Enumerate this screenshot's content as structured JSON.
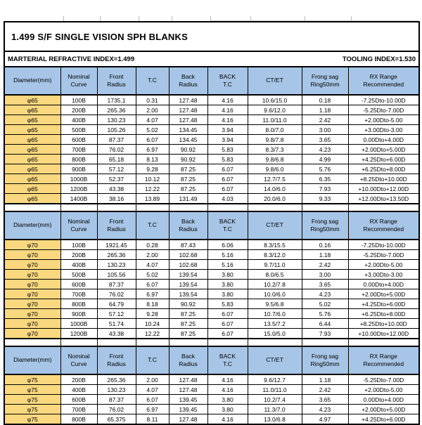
{
  "page": {
    "title": "1.499 S/F SINGLE VISION SPH BLANKS",
    "material_index_label": "MARTERIAL REFRACTIVE INDEX=1.499",
    "tooling_index_label": "TOOLING INDEX=1.530"
  },
  "colors": {
    "header_bg": "#A7C5E6",
    "diameter_bg": "#FAD87F",
    "border": "#000000"
  },
  "columns": [
    [
      "Diameter(mm)"
    ],
    [
      "Nominal",
      "Curve"
    ],
    [
      "Front",
      "Radius"
    ],
    [
      "T.C"
    ],
    [
      "Back",
      "Radius"
    ],
    [
      "BACK",
      "T.C"
    ],
    [
      "CT/ET"
    ],
    [
      "Frong sag",
      "Ring50mm"
    ],
    [
      "RX Range",
      "Recommended"
    ]
  ],
  "tables": [
    {
      "diameter": "φ65",
      "rows": [
        [
          "φ65",
          "100B",
          "1735.1",
          "0.31",
          "127.48",
          "4.16",
          "10.6/15.0",
          "0.18",
          "-7.25Dto-10.00D"
        ],
        [
          "φ65",
          "200B",
          "265.36",
          "2.00",
          "127.48",
          "4.16",
          "9.6/12.0",
          "1.18",
          "-5.25Dto-7.00D"
        ],
        [
          "φ65",
          "400B",
          "130.23",
          "4.07",
          "127.48",
          "4.16",
          "11.0/11.0",
          "2.42",
          "+2.00Dto-5.00"
        ],
        [
          "φ65",
          "500B",
          "105.26",
          "5.02",
          "134.45",
          "3.94",
          "8.0/7.0",
          "3.00",
          "+3.00Dto-3.00"
        ],
        [
          "φ65",
          "600B",
          "87.37",
          "6.07",
          "134.45",
          "3.94",
          "9.8/7.8",
          "3.65",
          "0.00Dto+4.00D"
        ],
        [
          "φ65",
          "700B",
          "76.02",
          "6.97",
          "90.92",
          "5.83",
          "8.3/7.3",
          "4.23",
          "+2.00Dto+5.00D"
        ],
        [
          "φ65",
          "800B",
          "65.18",
          "8.13",
          "90.92",
          "5.83",
          "9.8/6.8",
          "4.99",
          "+4.25Dto+6.00D"
        ],
        [
          "φ65",
          "900B",
          "57.12",
          "9.28",
          "87.25",
          "6.07",
          "9.8/6.0",
          "5.76",
          "+6.25Dto+8.00D"
        ],
        [
          "φ65",
          "1000B",
          "52.37",
          "10.12",
          "87.25",
          "6.07",
          "12.7/7.5",
          "6.35",
          "+8.25Dto+10.00D"
        ],
        [
          "φ65",
          "1200B",
          "43.38",
          "12.22",
          "87.25",
          "6.07",
          "14.0/6.0",
          "7.93",
          "+10.00Dto+12.00D"
        ],
        [
          "φ65",
          "1400B",
          "38.16",
          "13.89",
          "131.49",
          "4.03",
          "20.0/6.0",
          "9.33",
          "+12.00Dto+13.50D"
        ]
      ]
    },
    {
      "diameter": "φ70",
      "rows": [
        [
          "φ70",
          "100B",
          "1921.45",
          "0.28",
          "87.43",
          "6.06",
          "8.3/15.5",
          "0.16",
          "-7.25Dto-10.00D"
        ],
        [
          "φ70",
          "200B",
          "265.36",
          "2.00",
          "102.68",
          "5.16",
          "8.3/12.0",
          "1.18",
          "-5.25Dto-7.00D"
        ],
        [
          "φ70",
          "400B",
          "130.23",
          "4.07",
          "102.68",
          "5.16",
          "9.7/11.0",
          "2.42",
          "+2.00Dto-5.00"
        ],
        [
          "φ70",
          "500B",
          "105.56",
          "5.02",
          "139.54",
          "3.80",
          "8.0/6.5",
          "3.00",
          "+3.00Dto-3.00"
        ],
        [
          "φ70",
          "600B",
          "87.37",
          "6.07",
          "139.54",
          "3.80",
          "10.2/7.8",
          "3.65",
          "0.00Dto+4.00D"
        ],
        [
          "φ70",
          "700B",
          "76.02",
          "6.97",
          "139.54",
          "3.80",
          "10.0/6.0",
          "4.23",
          "+2.00Dto+5.00D"
        ],
        [
          "φ70",
          "800B",
          "64.79",
          "8.18",
          "90.92",
          "5.83",
          "9.5/6.8",
          "5.02",
          "+4.25Dto+6.00D"
        ],
        [
          "φ70",
          "900B",
          "57.12",
          "9.28",
          "87.25",
          "6.07",
          "10.7/6.0",
          "5.76",
          "+6.25Dto+8.00D"
        ],
        [
          "φ70",
          "1000B",
          "51.74",
          "10.24",
          "87.25",
          "6.07",
          "13.5/7.2",
          "6.44",
          "+8.25Dto+10.00D"
        ],
        [
          "φ70",
          "1200B",
          "43.38",
          "12.22",
          "87.25",
          "6.07",
          "15.0/5.0",
          "7.93",
          "+10.00Dto+12.00D"
        ]
      ]
    },
    {
      "diameter": "φ75",
      "rows": [
        [
          "φ75",
          "200B",
          "265.36",
          "2.00",
          "127.48",
          "4.16",
          "9.6/12.7",
          "1.18",
          "-5.25Dto-7.00D"
        ],
        [
          "φ75",
          "400B",
          "130.23",
          "4.07",
          "127.48",
          "4.16",
          "11.0/11.0",
          "2.42",
          "+2.00Dto-5.00"
        ],
        [
          "φ75",
          "600B",
          "87.37",
          "6.07",
          "139.45",
          "3.80",
          "10.2/7.4",
          "3.65",
          "0.00Dto+4.00D"
        ],
        [
          "φ75",
          "700B",
          "76.02",
          "6.97",
          "139.45",
          "3.80",
          "11.3/7.0",
          "4.23",
          "+2.00Dto+5.00D"
        ],
        [
          "φ75",
          "800B",
          "65.375",
          "8.11",
          "127.48",
          "4.16",
          "13.0/6.8",
          "4.97",
          "+4.25Dto+6.00D"
        ]
      ]
    }
  ]
}
